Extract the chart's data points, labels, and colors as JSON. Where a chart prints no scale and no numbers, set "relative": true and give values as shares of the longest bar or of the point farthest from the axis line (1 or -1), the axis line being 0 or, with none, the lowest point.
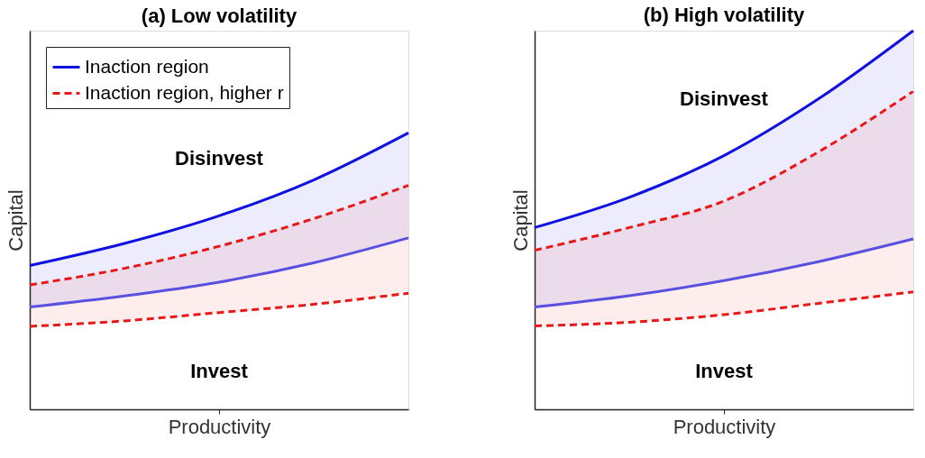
{
  "chart_data": [
    {
      "type": "line",
      "title": "(a) Low volatility",
      "xlabel": "Productivity",
      "ylabel": "Capital",
      "relative": true,
      "categories": [
        null,
        null,
        null,
        null,
        null
      ],
      "tick_labels": false,
      "legend": "top left",
      "grid": false,
      "series": [
        {
          "name": "Inaction region",
          "color": "#1010e0",
          "line_style": "solid",
          "values": [
            0.52,
            0.6,
            0.7,
            0.83,
            1
          ],
          "lower": [
            0.37,
            0.41,
            0.46,
            0.53,
            0.62
          ],
          "upper": [
            0.52,
            0.6,
            0.7,
            0.83,
            1
          ]
        },
        {
          "color": "#5a50e0",
          "line_style": "solid",
          "values": [
            0.37,
            0.41,
            0.46,
            0.53,
            0.62
          ]
        },
        {
          "name": "Inaction region, higher r",
          "color": "#e81818",
          "line_style": "dashed",
          "values": [
            0.45,
            0.51,
            0.59,
            0.69,
            0.81
          ],
          "lower": [
            0.3,
            0.32,
            0.35,
            0.38,
            0.42
          ],
          "upper": [
            0.45,
            0.51,
            0.59,
            0.69,
            0.81
          ]
        },
        {
          "color": "#e81818",
          "line_style": "dashed",
          "values": [
            0.3,
            0.32,
            0.35,
            0.38,
            0.42
          ]
        }
      ],
      "annotations": [
        "Disinvest",
        "Invest"
      ]
    },
    {
      "type": "line",
      "title": "(b) High volatility",
      "xlabel": "Productivity",
      "ylabel": "Capital",
      "relative": true,
      "categories": [
        null,
        null,
        null,
        null,
        null
      ],
      "tick_labels": false,
      "legend": false,
      "grid": false,
      "series": [
        {
          "color": "#1010e0",
          "line_style": "solid",
          "values": [
            0.48,
            0.56,
            0.67,
            0.82,
            1
          ],
          "lower": [
            0.27,
            0.3,
            0.34,
            0.39,
            0.45
          ],
          "upper": [
            0.48,
            0.56,
            0.67,
            0.82,
            1
          ]
        },
        {
          "color": "#5a50e0",
          "line_style": "solid",
          "values": [
            0.27,
            0.3,
            0.34,
            0.39,
            0.45
          ]
        },
        {
          "color": "#e81818",
          "line_style": "dashed",
          "values": [
            0.42,
            0.48,
            0.55,
            0.68,
            0.84
          ],
          "lower": [
            0.22,
            0.23,
            0.25,
            0.28,
            0.31
          ],
          "upper": [
            0.42,
            0.48,
            0.55,
            0.68,
            0.84
          ]
        },
        {
          "color": "#e81818",
          "line_style": "dashed",
          "values": [
            0.22,
            0.23,
            0.25,
            0.28,
            0.31
          ]
        }
      ],
      "annotations": [
        "Disinvest",
        "Invest"
      ]
    }
  ]
}
